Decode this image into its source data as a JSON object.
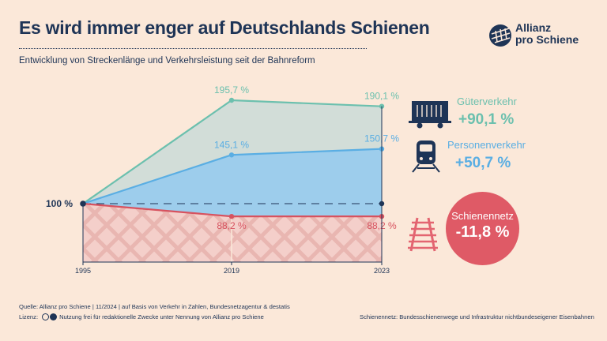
{
  "header": {
    "title": "Es wird immer enger auf Deutschlands Schienen",
    "subtitle": "Entwicklung von Streckenlänge und Verkehrsleistung seit der Bahnreform"
  },
  "logo": {
    "line1": "Allianz",
    "line2": "pro Schiene",
    "icon": "rail-tracks-logo-icon"
  },
  "chart_data": {
    "type": "area",
    "title": "Es wird immer enger auf Deutschlands Schienen",
    "subtitle": "Entwicklung von Streckenlänge und Verkehrsleistung seit der Bahnreform",
    "x": [
      "1995",
      "2019",
      "2023"
    ],
    "y_unit": "%",
    "baseline_label": "100 %",
    "baseline": 100,
    "ylim": [
      62,
      205
    ],
    "series": [
      {
        "name": "Güterverkehr",
        "values": [
          100,
          195.7,
          190.1
        ],
        "labels": [
          "",
          "195,7 %",
          "190,1 %"
        ],
        "color": "#6cc0ae",
        "change": "+90,1 %"
      },
      {
        "name": "Personenverkehr",
        "values": [
          100,
          145.1,
          150.7
        ],
        "labels": [
          "",
          "145,1 %",
          "150,7 %"
        ],
        "color": "#5aaee3",
        "change": "+50,7 %"
      },
      {
        "name": "Schienennetz",
        "values": [
          100,
          88.2,
          88.2
        ],
        "labels": [
          "",
          "88,2 %",
          "88,2 %"
        ],
        "color": "#d7525f",
        "change": "-11,8 %"
      }
    ],
    "grid": false,
    "legend_position": "right"
  },
  "legend": {
    "freight": {
      "label": "Güterverkehr",
      "value": "+90,1 %",
      "icon": "freight-wagon-icon",
      "color": "#6cc0ae"
    },
    "passenger": {
      "label": "Personenverkehr",
      "value": "+50,7 %",
      "icon": "train-icon",
      "color": "#5aaee3"
    },
    "network": {
      "label": "Schienennetz",
      "value": "-11,8 %",
      "icon": "rail-track-icon",
      "color": "#d7525f"
    }
  },
  "footer": {
    "source": "Quelle: Allianz pro Schiene | 11/2024 | auf Basis von Verkehr in Zahlen, Bundesnetzagentur & destatis",
    "license_prefix": "Lizenz:",
    "license_text": "Nutzung frei für redaktionelle Zwecke unter Nennung von Allianz pro Schiene",
    "note": "Schienennetz: Bundesschienenwege und Infrastruktur nichtbundeseigener Eisenbahnen"
  }
}
